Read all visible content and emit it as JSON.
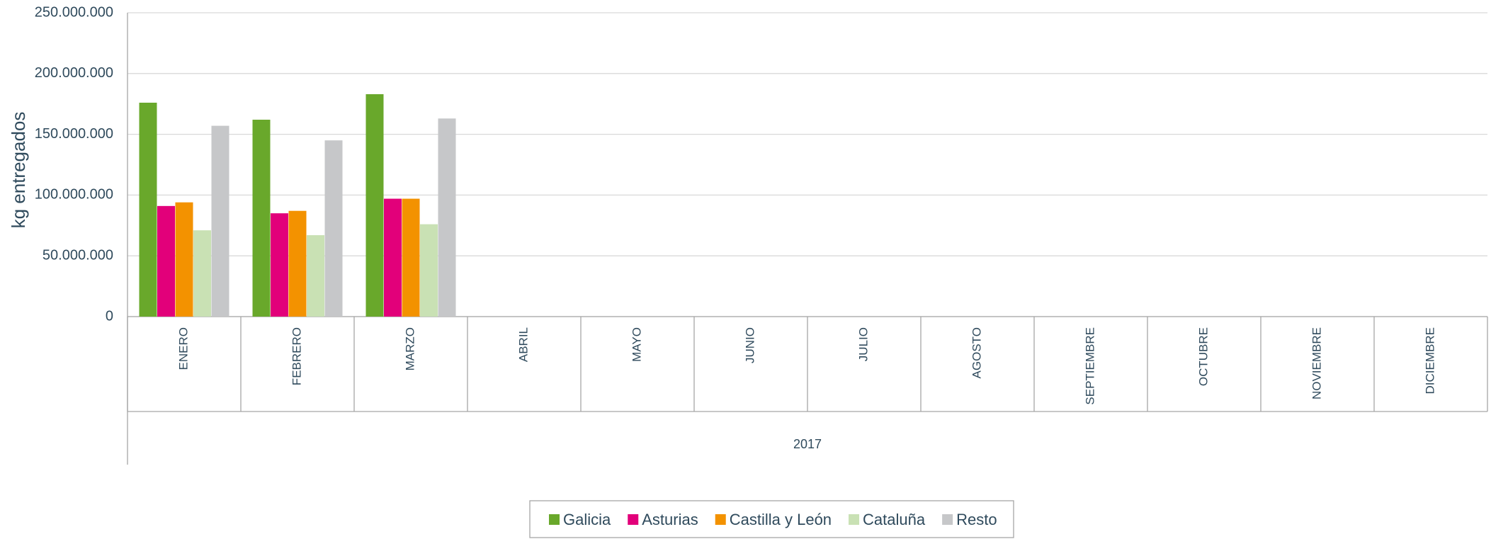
{
  "chart_data": {
    "type": "bar",
    "y_label": "kg entregados",
    "group_label": "2017",
    "categories": [
      "ENERO",
      "FEBRERO",
      "MARZO",
      "ABRIL",
      "MAYO",
      "JUNIO",
      "JULIO",
      "AGOSTO",
      "SEPTIEMBRE",
      "OCTUBRE",
      "NOVIEMBRE",
      "DICIEMBRE"
    ],
    "series": [
      {
        "name": "Galicia",
        "color": "#69a82b",
        "values": [
          176000000,
          162000000,
          183000000,
          null,
          null,
          null,
          null,
          null,
          null,
          null,
          null,
          null
        ]
      },
      {
        "name": "Asturias",
        "color": "#e2007a",
        "values": [
          91000000,
          85000000,
          97000000,
          null,
          null,
          null,
          null,
          null,
          null,
          null,
          null,
          null
        ]
      },
      {
        "name": "Castilla y León",
        "color": "#f39200",
        "values": [
          94000000,
          87000000,
          97000000,
          null,
          null,
          null,
          null,
          null,
          null,
          null,
          null,
          null
        ]
      },
      {
        "name": "Cataluña",
        "color": "#c9e1b4",
        "values": [
          71000000,
          67000000,
          76000000,
          null,
          null,
          null,
          null,
          null,
          null,
          null,
          null,
          null
        ]
      },
      {
        "name": "Resto",
        "color": "#c6c7c9",
        "values": [
          157000000,
          145000000,
          163000000,
          null,
          null,
          null,
          null,
          null,
          null,
          null,
          null,
          null
        ]
      }
    ],
    "ylim": [
      0,
      250000000
    ],
    "yticks": [
      0,
      {
        "value": 50000000,
        "label": "50.000.000"
      },
      {
        "value": 100000000,
        "label": "100.000.000"
      },
      {
        "value": 150000000,
        "label": "150.000.000"
      },
      {
        "value": 200000000,
        "label": "200.000.000"
      },
      {
        "value": 250000000,
        "label": "250.000.000"
      }
    ],
    "grid": true,
    "legend": "bottom"
  }
}
